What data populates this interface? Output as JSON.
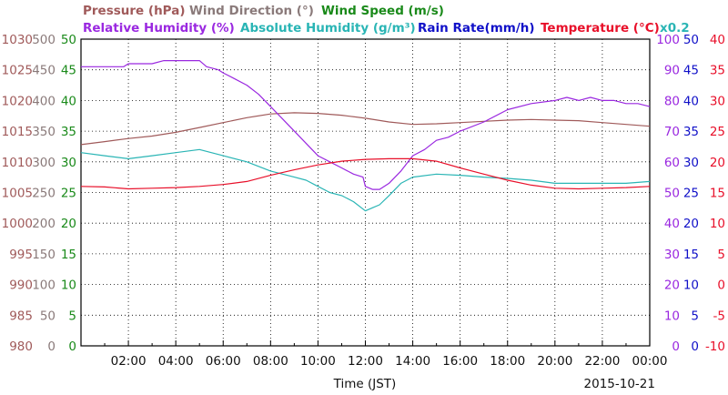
{
  "chart_data": {
    "type": "line",
    "date": "2015-10-21",
    "xlabel": "Time (JST)",
    "x_ticks": [
      "02:00",
      "04:00",
      "06:00",
      "08:00",
      "10:00",
      "12:00",
      "14:00",
      "16:00",
      "18:00",
      "20:00",
      "22:00",
      "00:00"
    ],
    "legend_row1": [
      {
        "label": "Pressure (hPa)",
        "color": "#a05a5a"
      },
      {
        "label": "Wind Direction (°)",
        "color": "#8a7a7a"
      },
      {
        "label": "Wind Speed (m/s)",
        "color": "#1a8a1a"
      }
    ],
    "legend_row2": [
      {
        "label": "Relative Humidity (%)",
        "color": "#9a28e0"
      },
      {
        "label": "Absolute Humidity (g/m³)",
        "color": "#2ab5b5"
      },
      {
        "label": "Rain Rate(mm/h)",
        "color": "#1010c8"
      },
      {
        "label": "Temperature (°C)",
        "color": "#e8102a"
      },
      {
        "label": "x0.2",
        "color": "#2ab5b5"
      }
    ],
    "left_axes": [
      {
        "name": "Pressure (hPa)",
        "color": "#a05a5a",
        "ticks": [
          "1030",
          "1025",
          "1020",
          "1015",
          "1010",
          "1005",
          "1000",
          "995",
          "990",
          "985",
          "980"
        ]
      },
      {
        "name": "Wind Direction (°)",
        "color": "#8a7a7a",
        "ticks": [
          "500",
          "450",
          "400",
          "350",
          "300",
          "250",
          "200",
          "150",
          "100",
          "50",
          "0"
        ]
      },
      {
        "name": "Wind Speed (m/s)",
        "color": "#1a8a1a",
        "ticks": [
          "50",
          "45",
          "40",
          "35",
          "30",
          "25",
          "20",
          "15",
          "10",
          "5",
          "0"
        ]
      }
    ],
    "right_axes": [
      {
        "name": "Relative Humidity (%)",
        "color": "#9a28e0",
        "ticks": [
          "100",
          "90",
          "80",
          "70",
          "60",
          "50",
          "40",
          "30",
          "20",
          "10",
          "0"
        ]
      },
      {
        "name": "Rain Rate (mm/h)",
        "color": "#1010c8",
        "ticks": [
          "50",
          "45",
          "40",
          "35",
          "30",
          "25",
          "20",
          "15",
          "10",
          "5",
          "0"
        ]
      },
      {
        "name": "Temperature (°C)",
        "color": "#e8102a",
        "ticks": [
          "40",
          "35",
          "30",
          "25",
          "20",
          "15",
          "10",
          "5",
          "0",
          "-5",
          "-10"
        ]
      }
    ],
    "x_range_hours": [
      0,
      24
    ],
    "series": [
      {
        "name": "Pressure (hPa)",
        "color": "#a05a5a",
        "axis": "pressure",
        "ylim": [
          980,
          1030
        ],
        "x": [
          0,
          1,
          2,
          3,
          4,
          5,
          6,
          7,
          8,
          9,
          10,
          11,
          12,
          13,
          14,
          15,
          16,
          17,
          18,
          19,
          20,
          21,
          22,
          23,
          24
        ],
        "y": [
          1012.8,
          1013.3,
          1013.8,
          1014.2,
          1014.8,
          1015.6,
          1016.4,
          1017.2,
          1017.8,
          1018.0,
          1017.9,
          1017.6,
          1017.1,
          1016.5,
          1016.1,
          1016.2,
          1016.4,
          1016.6,
          1016.8,
          1016.9,
          1016.8,
          1016.7,
          1016.4,
          1016.1,
          1015.8
        ]
      },
      {
        "name": "Relative Humidity (%)",
        "color": "#9a28e0",
        "axis": "rh",
        "ylim": [
          0,
          100
        ],
        "x": [
          0,
          1,
          1.8,
          2,
          3,
          3.5,
          4,
          5,
          5.3,
          5.8,
          6,
          6.5,
          7,
          7.5,
          8,
          8.5,
          9,
          9.5,
          10,
          10.5,
          11,
          11.5,
          11.9,
          12,
          12.3,
          12.6,
          13,
          13.5,
          14,
          14.5,
          15,
          15.5,
          16,
          17,
          18,
          19,
          20,
          20.5,
          21,
          21.5,
          22,
          22.5,
          23,
          23.5,
          24
        ],
        "y": [
          91,
          91,
          91,
          92,
          92,
          93,
          93,
          93,
          91,
          90,
          89,
          87,
          85,
          82,
          78,
          74,
          70,
          66,
          62,
          60,
          58,
          56,
          55,
          52,
          51,
          51,
          53,
          57,
          62,
          64,
          67,
          68,
          70,
          73,
          77,
          79,
          80,
          81,
          80,
          81,
          80,
          80,
          79,
          79,
          78
        ]
      },
      {
        "name": "Absolute Humidity (g/m³)",
        "color": "#2ab5b5",
        "axis": "wind_speed",
        "ylim": [
          0,
          50
        ],
        "x": [
          0,
          1,
          2,
          3,
          4,
          5,
          6,
          7,
          8,
          9,
          9.5,
          10,
          10.5,
          11,
          11.5,
          12,
          12.3,
          12.6,
          13,
          13.5,
          14,
          15,
          16,
          17,
          18,
          19,
          20,
          21,
          22,
          23,
          24
        ],
        "y": [
          31.5,
          31,
          30.5,
          31,
          31.5,
          32,
          31,
          30,
          28.5,
          27.5,
          27,
          26,
          25,
          24.5,
          23.5,
          22,
          22.5,
          23,
          24.5,
          26.5,
          27.5,
          28,
          27.8,
          27.5,
          27.3,
          27,
          26.5,
          26.5,
          26.5,
          26.5,
          26.8
        ]
      },
      {
        "name": "Temperature (°C)",
        "color": "#e8102a",
        "axis": "temperature",
        "ylim": [
          -10,
          40
        ],
        "x": [
          0,
          1,
          2,
          3,
          4,
          5,
          6,
          7,
          8,
          9,
          10,
          11,
          12,
          13,
          14,
          15,
          16,
          17,
          18,
          19,
          20,
          21,
          22,
          23,
          24
        ],
        "y": [
          16,
          15.9,
          15.6,
          15.7,
          15.8,
          16,
          16.3,
          16.8,
          17.8,
          18.7,
          19.5,
          20.1,
          20.4,
          20.5,
          20.5,
          20.1,
          19,
          18,
          17,
          16.2,
          15.7,
          15.6,
          15.7,
          15.8,
          16
        ]
      }
    ]
  }
}
